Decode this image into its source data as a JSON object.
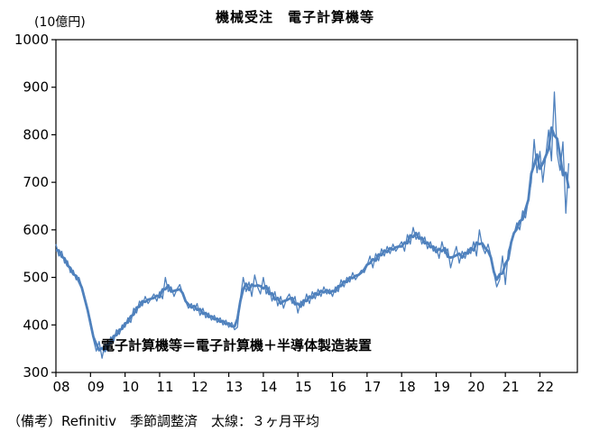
{
  "title": "機械受注　電子計算機等",
  "unit_label": "(10億円)",
  "annotation": "電子計算機等＝電子計算機＋半導体製造装置",
  "footer_note": "（備考）Refinitiv　季節調整済　太線：３ヶ月平均",
  "chart_data": {
    "type": "line",
    "title": "機械受注　電子計算機等",
    "ylabel": "(10億円)",
    "ylim": [
      300,
      1000
    ],
    "y_ticks": [
      1000,
      900,
      800,
      700,
      600,
      500,
      400,
      300
    ],
    "x_tick_labels": [
      "08",
      "09",
      "10",
      "11",
      "12",
      "13",
      "14",
      "15",
      "16",
      "17",
      "18",
      "19",
      "20",
      "21",
      "22"
    ],
    "start_year": 2008,
    "start_month": 1,
    "frequency": "monthly",
    "grid": false,
    "legend_position": "none",
    "line_color": "#4f81bd",
    "thin_line_width": 1.3,
    "thick_line_width": 2.8,
    "series": [
      {
        "name": "電子計算機等（月次・細線）",
        "values": [
          570,
          545,
          555,
          530,
          535,
          510,
          515,
          495,
          500,
          480,
          455,
          430,
          410,
          370,
          345,
          365,
          330,
          360,
          345,
          375,
          365,
          390,
          380,
          400,
          395,
          415,
          405,
          435,
          425,
          450,
          440,
          460,
          445,
          455,
          465,
          450,
          470,
          455,
          500,
          470,
          480,
          460,
          475,
          485,
          465,
          450,
          435,
          445,
          430,
          445,
          420,
          435,
          415,
          425,
          410,
          420,
          405,
          415,
          400,
          410,
          395,
          405,
          390,
          395,
          455,
          500,
          470,
          490,
          460,
          505,
          480,
          465,
          500,
          465,
          480,
          450,
          470,
          440,
          460,
          435,
          455,
          465,
          445,
          460,
          425,
          450,
          440,
          465,
          445,
          470,
          455,
          475,
          460,
          480,
          465,
          475,
          460,
          480,
          470,
          495,
          480,
          500,
          490,
          510,
          495,
          505,
          515,
          510,
          525,
          545,
          520,
          550,
          535,
          560,
          545,
          565,
          550,
          570,
          555,
          565,
          575,
          555,
          590,
          570,
          605,
          580,
          595,
          570,
          585,
          560,
          575,
          555,
          565,
          540,
          575,
          550,
          560,
          520,
          545,
          565,
          530,
          555,
          540,
          560,
          550,
          575,
          545,
          600,
          565,
          550,
          570,
          545,
          510,
          480,
          495,
          545,
          485,
          555,
          575,
          590,
          615,
          600,
          640,
          625,
          665,
          700,
          790,
          720,
          765,
          700,
          755,
          810,
          745,
          890,
          760,
          725,
          785,
          635,
          740
        ]
      },
      {
        "name": "３ヶ月平均（太線）",
        "derived": "3-month moving average of monthly series"
      }
    ]
  }
}
